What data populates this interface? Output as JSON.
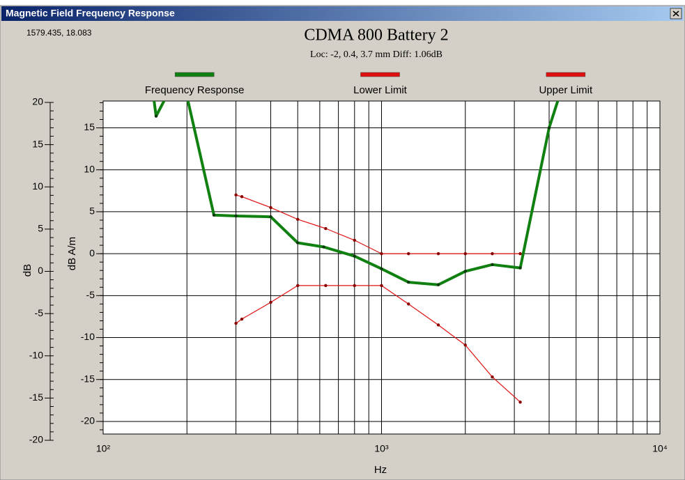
{
  "window": {
    "title": "Magnetic Field Frequency Response"
  },
  "cursor_readout": "1579.435, 18.083",
  "chart_data": {
    "type": "line",
    "title": "CDMA 800 Battery 2",
    "subtitle": "Loc: -2, 0.4, 3.7 mm Diff: 1.06dB",
    "xlabel": "Hz",
    "ylabel": "dB A/m",
    "y2label": "dB",
    "xscale": "log",
    "xlim": [
      100,
      10000
    ],
    "xticks": [
      {
        "value": 100,
        "label": "10²"
      },
      {
        "value": 1000,
        "label": "10³"
      },
      {
        "value": 10000,
        "label": "10⁴"
      }
    ],
    "ylim": [
      -21.5,
      18.2
    ],
    "yticks": [
      -20,
      -15,
      -10,
      -5,
      0,
      5,
      10,
      15
    ],
    "y2lim": [
      -20,
      20
    ],
    "y2ticks": [
      -20,
      -15,
      -10,
      -5,
      0,
      5,
      10,
      15,
      20
    ],
    "y2_position": "left",
    "grid": true,
    "legend": "top",
    "series": [
      {
        "name": "Frequency Response",
        "color": "#108010",
        "x": [
          150,
          155,
          190,
          250,
          300,
          400,
          500,
          620,
          800,
          1000,
          1250,
          1600,
          2000,
          2500,
          3150,
          4000,
          5000
        ],
        "values": [
          20,
          16.4,
          22,
          4.6,
          4.5,
          4.4,
          1.3,
          0.8,
          -0.3,
          -1.8,
          -3.4,
          -3.7,
          -2.1,
          -1.3,
          -1.7,
          15,
          25
        ]
      },
      {
        "name": "Lower Limit",
        "color": "#e01010",
        "x": [
          300,
          315,
          400,
          500,
          630,
          800,
          1000,
          1250,
          1600,
          2000,
          2500,
          3150
        ],
        "values": [
          -8.3,
          -7.8,
          -5.8,
          -3.8,
          -3.8,
          -3.8,
          -3.8,
          -6.0,
          -8.5,
          -10.9,
          -14.7,
          -17.7
        ]
      },
      {
        "name": "Upper Limit",
        "color": "#e01010",
        "x": [
          300,
          315,
          400,
          500,
          630,
          800,
          1000,
          1250,
          1600,
          2000,
          2500,
          3150
        ],
        "values": [
          7.0,
          6.8,
          5.5,
          4.1,
          3.0,
          1.6,
          0,
          0,
          0,
          0,
          0,
          0
        ]
      }
    ]
  }
}
